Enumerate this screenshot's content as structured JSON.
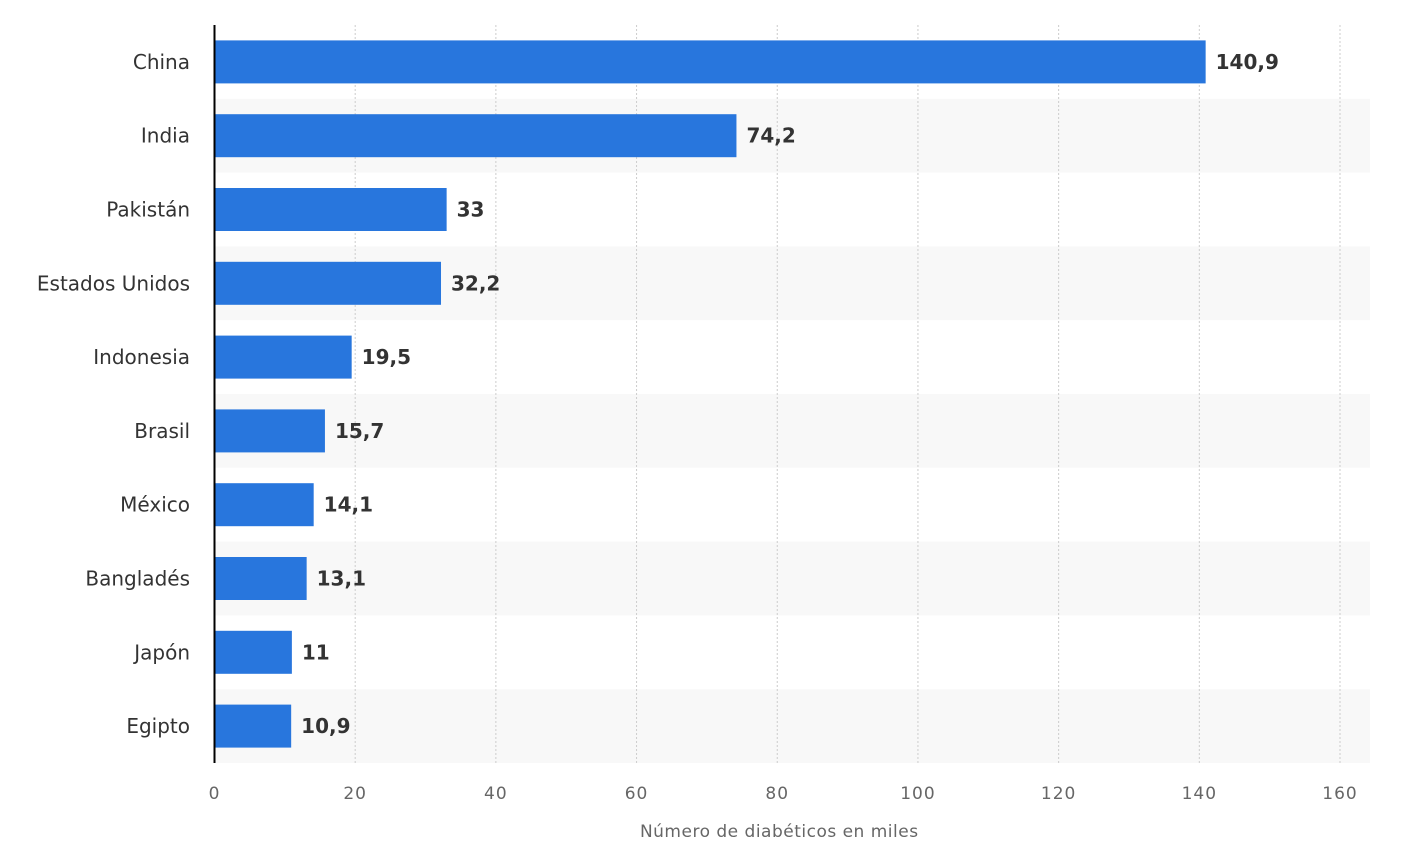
{
  "chart_data": {
    "type": "bar",
    "orientation": "horizontal",
    "categories": [
      "China",
      "India",
      "Pakistán",
      "Estados Unidos",
      "Indonesia",
      "Brasil",
      "México",
      "Bangladés",
      "Japón",
      "Egipto"
    ],
    "values": [
      140.9,
      74.2,
      33,
      32.2,
      19.5,
      15.7,
      14.1,
      13.1,
      11,
      10.9
    ],
    "value_labels": [
      "140,9",
      "74,2",
      "33",
      "32,2",
      "19,5",
      "15,7",
      "14,1",
      "13,1",
      "11",
      "10,9"
    ],
    "xlabel": "Número de diabéticos en miles",
    "ylabel": "",
    "xlim": [
      0,
      160
    ],
    "xticks": [
      0,
      20,
      40,
      60,
      80,
      100,
      120,
      140,
      160
    ],
    "grid": true,
    "colors": {
      "bar": "#2876dd",
      "band": "#f8f8f8",
      "grid": "#cccccc",
      "axis": "#000000",
      "text": "#333333",
      "tick_text": "#666666"
    }
  }
}
